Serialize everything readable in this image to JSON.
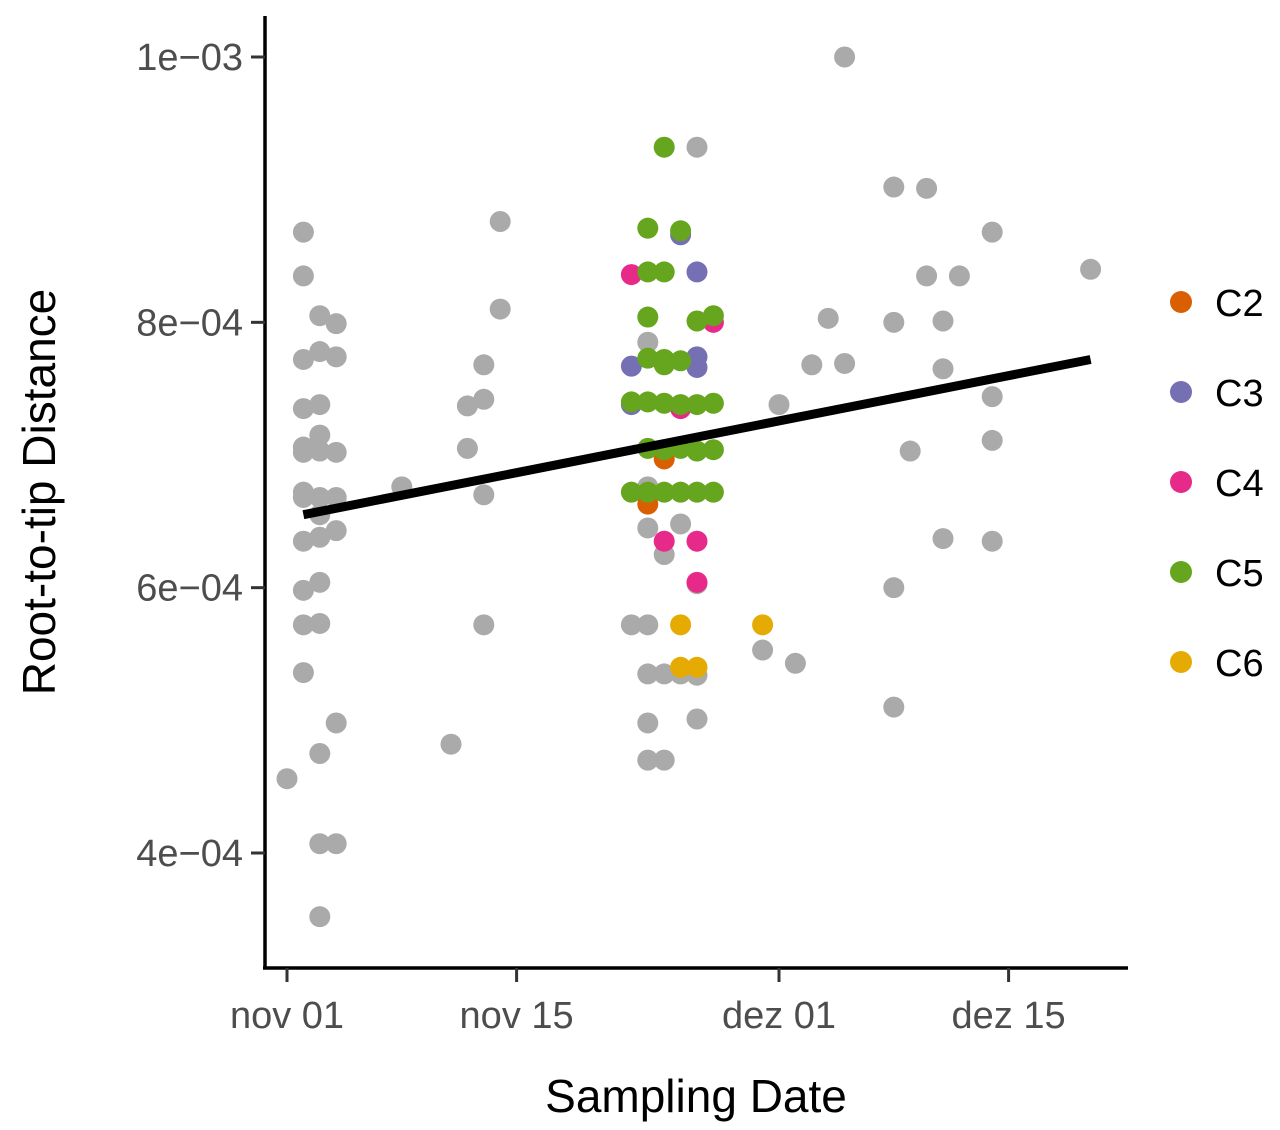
{
  "chart_data": {
    "type": "scatter",
    "xlabel": "Sampling Date",
    "ylabel": "Root-to-tip Distance",
    "x_axis": {
      "kind": "date",
      "range": [
        "2020-11-01",
        "2020-12-22"
      ],
      "ticks": [
        {
          "date": "2020-11-01",
          "label": "nov 01"
        },
        {
          "date": "2020-11-15",
          "label": "nov 15"
        },
        {
          "date": "2020-12-01",
          "label": "dez 01"
        },
        {
          "date": "2020-12-15",
          "label": "dez 15"
        }
      ]
    },
    "y_axis": {
      "scale": "linear",
      "range": [
        0.00033,
        0.00103
      ],
      "ticks": [
        {
          "value": 0.0004,
          "label": "4e−04"
        },
        {
          "value": 0.0006,
          "label": "6e−04"
        },
        {
          "value": 0.0008,
          "label": "8e−04"
        },
        {
          "value": 0.001,
          "label": "1e−03"
        }
      ]
    },
    "grid": false,
    "legend_position": "right",
    "regression_line": {
      "x": [
        "2020-11-02",
        "2020-12-20"
      ],
      "y": [
        0.000655,
        0.000772
      ],
      "color": "#000000"
    },
    "series": [
      {
        "label": "",
        "color": "#aaaaaa",
        "points": [
          {
            "x": "2020-11-02",
            "y": 0.000868
          },
          {
            "x": "2020-11-02",
            "y": 0.000835
          },
          {
            "x": "2020-11-02",
            "y": 0.000772
          },
          {
            "x": "2020-11-02",
            "y": 0.000735
          },
          {
            "x": "2020-11-02",
            "y": 0.000706
          },
          {
            "x": "2020-11-02",
            "y": 0.000702
          },
          {
            "x": "2020-11-02",
            "y": 0.000672
          },
          {
            "x": "2020-11-02",
            "y": 0.000668
          },
          {
            "x": "2020-11-02",
            "y": 0.000635
          },
          {
            "x": "2020-11-02",
            "y": 0.000598
          },
          {
            "x": "2020-11-02",
            "y": 0.000572
          },
          {
            "x": "2020-11-02",
            "y": 0.000536
          },
          {
            "x": "2020-11-01",
            "y": 0.000456
          },
          {
            "x": "2020-11-03",
            "y": 0.000805
          },
          {
            "x": "2020-11-03",
            "y": 0.000778
          },
          {
            "x": "2020-11-03",
            "y": 0.000738
          },
          {
            "x": "2020-11-03",
            "y": 0.000715
          },
          {
            "x": "2020-11-03",
            "y": 0.000703
          },
          {
            "x": "2020-11-03",
            "y": 0.000668
          },
          {
            "x": "2020-11-03",
            "y": 0.000655
          },
          {
            "x": "2020-11-03",
            "y": 0.000638
          },
          {
            "x": "2020-11-03",
            "y": 0.000604
          },
          {
            "x": "2020-11-03",
            "y": 0.000573
          },
          {
            "x": "2020-11-03",
            "y": 0.000475
          },
          {
            "x": "2020-11-03",
            "y": 0.000407
          },
          {
            "x": "2020-11-03",
            "y": 0.000352
          },
          {
            "x": "2020-11-04",
            "y": 0.000799
          },
          {
            "x": "2020-11-04",
            "y": 0.000774
          },
          {
            "x": "2020-11-04",
            "y": 0.000702
          },
          {
            "x": "2020-11-04",
            "y": 0.000668
          },
          {
            "x": "2020-11-04",
            "y": 0.000643
          },
          {
            "x": "2020-11-04",
            "y": 0.000498
          },
          {
            "x": "2020-11-04",
            "y": 0.000407
          },
          {
            "x": "2020-11-08",
            "y": 0.000676
          },
          {
            "x": "2020-11-11",
            "y": 0.000482
          },
          {
            "x": "2020-11-12",
            "y": 0.000737
          },
          {
            "x": "2020-11-12",
            "y": 0.000705
          },
          {
            "x": "2020-11-13",
            "y": 0.000768
          },
          {
            "x": "2020-11-13",
            "y": 0.000742
          },
          {
            "x": "2020-11-13",
            "y": 0.00067
          },
          {
            "x": "2020-11-13",
            "y": 0.000572
          },
          {
            "x": "2020-11-14",
            "y": 0.000876
          },
          {
            "x": "2020-11-14",
            "y": 0.00081
          },
          {
            "x": "2020-11-22",
            "y": 0.000572
          },
          {
            "x": "2020-11-23",
            "y": 0.000572
          },
          {
            "x": "2020-11-23",
            "y": 0.000535
          },
          {
            "x": "2020-11-23",
            "y": 0.000498
          },
          {
            "x": "2020-11-23",
            "y": 0.00047
          },
          {
            "x": "2020-11-23",
            "y": 0.000645
          },
          {
            "x": "2020-11-23",
            "y": 0.000676
          },
          {
            "x": "2020-11-23",
            "y": 0.000785
          },
          {
            "x": "2020-11-24",
            "y": 0.000535
          },
          {
            "x": "2020-11-24",
            "y": 0.00047
          },
          {
            "x": "2020-11-24",
            "y": 0.000625
          },
          {
            "x": "2020-11-25",
            "y": 0.000535
          },
          {
            "x": "2020-11-25",
            "y": 0.000648
          },
          {
            "x": "2020-11-26",
            "y": 0.000603
          },
          {
            "x": "2020-11-26",
            "y": 0.000534
          },
          {
            "x": "2020-11-26",
            "y": 0.000501
          },
          {
            "x": "2020-11-26",
            "y": 0.000932
          },
          {
            "x": "2020-11-30",
            "y": 0.000553
          },
          {
            "x": "2020-12-01",
            "y": 0.000738
          },
          {
            "x": "2020-12-02",
            "y": 0.000543
          },
          {
            "x": "2020-12-03",
            "y": 0.000768
          },
          {
            "x": "2020-12-04",
            "y": 0.000803
          },
          {
            "x": "2020-12-05",
            "y": 0.000769
          },
          {
            "x": "2020-12-05",
            "y": 0.001
          },
          {
            "x": "2020-12-08",
            "y": 0.0008
          },
          {
            "x": "2020-12-08",
            "y": 0.0006
          },
          {
            "x": "2020-12-08",
            "y": 0.00051
          },
          {
            "x": "2020-12-08",
            "y": 0.000902
          },
          {
            "x": "2020-12-09",
            "y": 0.000703
          },
          {
            "x": "2020-12-10",
            "y": 0.000835
          },
          {
            "x": "2020-12-10",
            "y": 0.000901
          },
          {
            "x": "2020-12-11",
            "y": 0.000801
          },
          {
            "x": "2020-12-11",
            "y": 0.000765
          },
          {
            "x": "2020-12-11",
            "y": 0.000637
          },
          {
            "x": "2020-12-12",
            "y": 0.000835
          },
          {
            "x": "2020-12-14",
            "y": 0.000868
          },
          {
            "x": "2020-12-14",
            "y": 0.000744
          },
          {
            "x": "2020-12-14",
            "y": 0.000711
          },
          {
            "x": "2020-12-14",
            "y": 0.000635
          },
          {
            "x": "2020-12-20",
            "y": 0.00084
          }
        ]
      },
      {
        "label": "C2",
        "color": "#d95f02",
        "points": [
          {
            "x": "2020-11-23",
            "y": 0.000663
          },
          {
            "x": "2020-11-24",
            "y": 0.000697
          }
        ]
      },
      {
        "label": "C3",
        "color": "#7570b3",
        "points": [
          {
            "x": "2020-11-22",
            "y": 0.000767
          },
          {
            "x": "2020-11-22",
            "y": 0.000738
          },
          {
            "x": "2020-11-25",
            "y": 0.000866
          },
          {
            "x": "2020-11-26",
            "y": 0.000838
          },
          {
            "x": "2020-11-26",
            "y": 0.000774
          },
          {
            "x": "2020-11-26",
            "y": 0.000766
          }
        ]
      },
      {
        "label": "C4",
        "color": "#e7298a",
        "points": [
          {
            "x": "2020-11-22",
            "y": 0.000836
          },
          {
            "x": "2020-11-24",
            "y": 0.000635
          },
          {
            "x": "2020-11-25",
            "y": 0.000735
          },
          {
            "x": "2020-11-26",
            "y": 0.000635
          },
          {
            "x": "2020-11-26",
            "y": 0.000604
          },
          {
            "x": "2020-11-27",
            "y": 0.0008
          }
        ]
      },
      {
        "label": "C5",
        "color": "#66a61e",
        "points": [
          {
            "x": "2020-11-24",
            "y": 0.000932
          },
          {
            "x": "2020-11-23",
            "y": 0.000871
          },
          {
            "x": "2020-11-25",
            "y": 0.000869
          },
          {
            "x": "2020-11-23",
            "y": 0.000838
          },
          {
            "x": "2020-11-24",
            "y": 0.000838
          },
          {
            "x": "2020-11-23",
            "y": 0.000804
          },
          {
            "x": "2020-11-26",
            "y": 0.000801
          },
          {
            "x": "2020-11-27",
            "y": 0.000805
          },
          {
            "x": "2020-11-23",
            "y": 0.000773
          },
          {
            "x": "2020-11-24",
            "y": 0.000772
          },
          {
            "x": "2020-11-24",
            "y": 0.000768
          },
          {
            "x": "2020-11-25",
            "y": 0.000771
          },
          {
            "x": "2020-11-22",
            "y": 0.00074
          },
          {
            "x": "2020-11-23",
            "y": 0.00074
          },
          {
            "x": "2020-11-24",
            "y": 0.000739
          },
          {
            "x": "2020-11-25",
            "y": 0.000738
          },
          {
            "x": "2020-11-26",
            "y": 0.000738
          },
          {
            "x": "2020-11-27",
            "y": 0.000739
          },
          {
            "x": "2020-11-23",
            "y": 0.000705
          },
          {
            "x": "2020-11-24",
            "y": 0.000704
          },
          {
            "x": "2020-11-25",
            "y": 0.000705
          },
          {
            "x": "2020-11-26",
            "y": 0.000703
          },
          {
            "x": "2020-11-27",
            "y": 0.000704
          },
          {
            "x": "2020-11-22",
            "y": 0.000672
          },
          {
            "x": "2020-11-23",
            "y": 0.000672
          },
          {
            "x": "2020-11-24",
            "y": 0.000672
          },
          {
            "x": "2020-11-25",
            "y": 0.000672
          },
          {
            "x": "2020-11-26",
            "y": 0.000672
          },
          {
            "x": "2020-11-27",
            "y": 0.000672
          }
        ]
      },
      {
        "label": "C6",
        "color": "#e6ab02",
        "points": [
          {
            "x": "2020-11-25",
            "y": 0.000572
          },
          {
            "x": "2020-11-25",
            "y": 0.00054
          },
          {
            "x": "2020-11-26",
            "y": 0.00054
          },
          {
            "x": "2020-11-30",
            "y": 0.000572
          }
        ]
      }
    ]
  }
}
